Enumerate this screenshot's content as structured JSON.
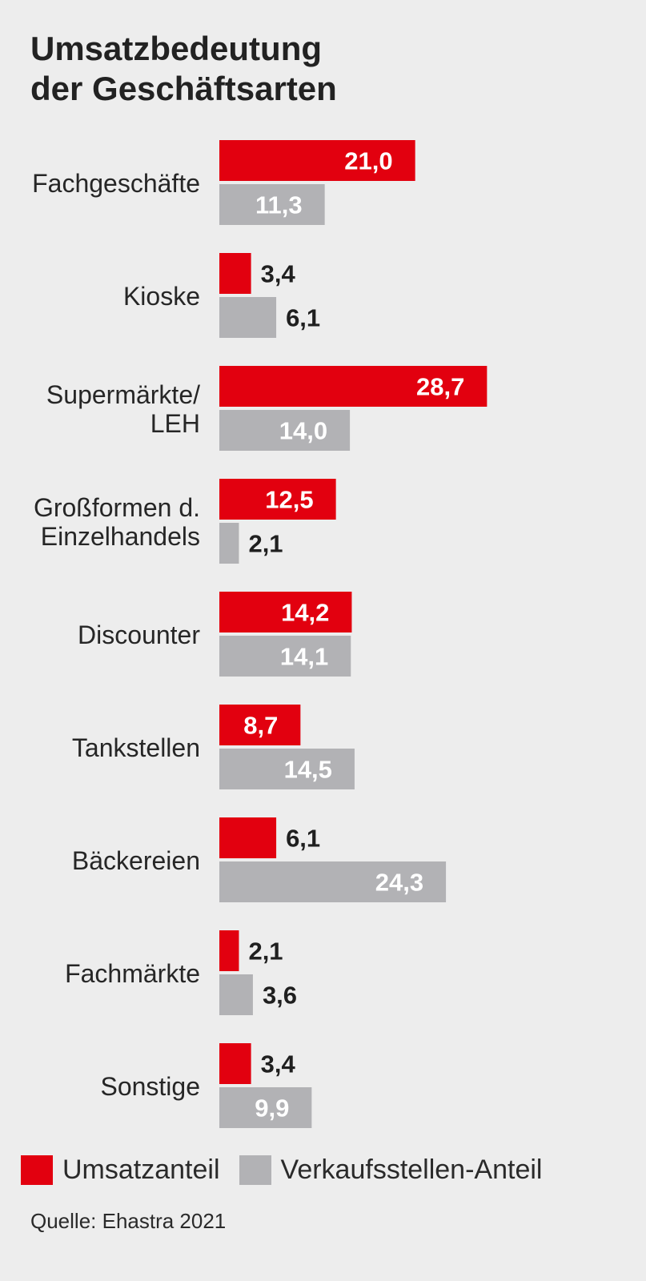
{
  "title": {
    "line1": "Umsatzbedeutung",
    "line2": "der Geschäftsarten"
  },
  "legend": {
    "umsatz": "Umsatzanteil",
    "verkauf": "Verkaufsstellen-Anteil"
  },
  "source": "Quelle: Ehastra 2021",
  "colors": {
    "umsatz": "#e2000f",
    "verkauf": "#b2b2b5",
    "label_light": "#ffffff",
    "label_dark": "#1f1f1f"
  },
  "chart_data": {
    "type": "bar",
    "orientation": "horizontal",
    "title": "Umsatzbedeutung der Geschäftsarten",
    "categories": [
      [
        "Fachgeschäfte"
      ],
      [
        "Kioske"
      ],
      [
        "Supermärkte/",
        "LEH"
      ],
      [
        "Großformen d.",
        "Einzelhandels"
      ],
      [
        "Discounter"
      ],
      [
        "Tankstellen"
      ],
      [
        "Bäckereien"
      ],
      [
        "Fachmärkte"
      ],
      [
        "Sonstige"
      ]
    ],
    "series": [
      {
        "name": "Umsatzanteil",
        "values": [
          21.0,
          3.4,
          28.7,
          12.5,
          14.2,
          8.7,
          6.1,
          2.1,
          3.4
        ],
        "labels": [
          "21,0",
          "3,4",
          "28,7",
          "12,5",
          "14,2",
          "8,7",
          "6,1",
          "2,1",
          "3,4"
        ]
      },
      {
        "name": "Verkaufsstellen-Anteil",
        "values": [
          11.3,
          6.1,
          14.0,
          2.1,
          14.1,
          14.5,
          24.3,
          3.6,
          9.9
        ],
        "labels": [
          "11,3",
          "6,1",
          "14,0",
          "2,1",
          "14,1",
          "14,5",
          "24,3",
          "3,6",
          "9,9"
        ]
      }
    ],
    "xlim": [
      0,
      30
    ],
    "grid": false,
    "legend_position": "bottom-left"
  }
}
